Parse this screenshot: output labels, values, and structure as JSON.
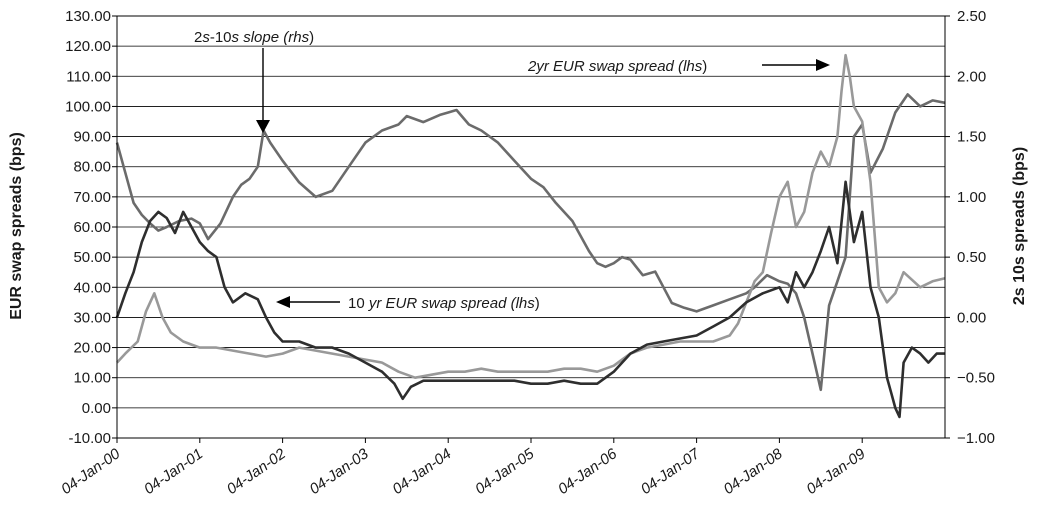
{
  "chart_data": {
    "type": "line",
    "ylabel": "EUR swap spreads (bps)",
    "y2label": "2s 10s spreads (bps)",
    "ylim": [
      -10,
      130
    ],
    "y2lim": [
      -1.0,
      2.5
    ],
    "yticks": [
      "-10.00",
      "0.00",
      "10.00",
      "20.00",
      "30.00",
      "40.00",
      "50.00",
      "60.00",
      "70.00",
      "80.00",
      "90.00",
      "100.00",
      "110.00",
      "120.00",
      "130.00"
    ],
    "y2ticks": [
      "−1.00",
      "−0.50",
      "0.00",
      "0.50",
      "1.00",
      "1.50",
      "2.00",
      "2.50"
    ],
    "xticks": [
      "04-Jan-00",
      "04-Jan-01",
      "04-Jan-02",
      "04-Jan-03",
      "04-Jan-04",
      "04-Jan-05",
      "04-Jan-06",
      "04-Jan-07",
      "04-Jan-08",
      "04-Jan-09"
    ],
    "xlim": [
      2000.0,
      2010.0
    ],
    "grid": "horizontal",
    "annotations": {
      "slope": {
        "pre": "2",
        "it1": "s",
        "mid": "-10",
        "it2": "s slope (",
        "it3": "rhs",
        "post": ")"
      },
      "two_yr": {
        "it1": "2yr EUR swap spread (",
        "it2": "lhs",
        "post": ")"
      },
      "ten_yr": {
        "pre": "10 ",
        "it1": "yr EUR swap spread (",
        "it2": "lhs",
        "post": ")"
      }
    },
    "series": [
      {
        "axis": "right",
        "color": "#6b6b6b",
        "x": [
          2000.0,
          2000.1,
          2000.2,
          2000.3,
          2000.4,
          2000.5,
          2000.6,
          2000.75,
          2000.9,
          2001.0,
          2001.1,
          2001.25,
          2001.4,
          2001.5,
          2001.6,
          2001.7,
          2001.77,
          2001.85,
          2002.0,
          2002.2,
          2002.4,
          2002.6,
          2002.8,
          2003.0,
          2003.2,
          2003.4,
          2003.5,
          2003.7,
          2003.9,
          2004.0,
          2004.1,
          2004.25,
          2004.4,
          2004.6,
          2004.8,
          2005.0,
          2005.15,
          2005.3,
          2005.5,
          2005.7,
          2005.8,
          2005.9,
          2006.0,
          2006.1,
          2006.2,
          2006.35,
          2006.5,
          2006.6,
          2006.7,
          2006.85,
          2007.0,
          2007.2,
          2007.4,
          2007.6,
          2007.7,
          2007.85,
          2008.0,
          2008.1,
          2008.2,
          2008.3,
          2008.4,
          2008.5,
          2008.6,
          2008.7,
          2008.8,
          2008.9,
          2009.0,
          2009.1,
          2009.25,
          2009.4,
          2009.55,
          2009.7,
          2009.85,
          2010.0
        ],
        "y": [
          1.45,
          1.2,
          0.95,
          0.85,
          0.78,
          0.72,
          0.75,
          0.8,
          0.82,
          0.78,
          0.65,
          0.78,
          1.0,
          1.1,
          1.15,
          1.25,
          1.55,
          1.45,
          1.3,
          1.12,
          1.0,
          1.05,
          1.25,
          1.45,
          1.55,
          1.6,
          1.67,
          1.62,
          1.68,
          1.7,
          1.72,
          1.6,
          1.55,
          1.45,
          1.3,
          1.15,
          1.08,
          0.95,
          0.8,
          0.55,
          0.45,
          0.42,
          0.45,
          0.5,
          0.48,
          0.35,
          0.38,
          0.25,
          0.12,
          0.08,
          0.05,
          0.1,
          0.15,
          0.2,
          0.25,
          0.35,
          0.3,
          0.28,
          0.2,
          0.0,
          -0.3,
          -0.6,
          0.1,
          0.3,
          0.5,
          1.5,
          1.6,
          1.2,
          1.4,
          1.7,
          1.85,
          1.75,
          1.8,
          1.78
        ]
      },
      {
        "axis": "left",
        "color": "#999999",
        "x": [
          2000.0,
          2000.1,
          2000.25,
          2000.35,
          2000.45,
          2000.55,
          2000.65,
          2000.8,
          2001.0,
          2001.2,
          2001.4,
          2001.6,
          2001.8,
          2002.0,
          2002.2,
          2002.4,
          2002.6,
          2002.8,
          2003.0,
          2003.2,
          2003.4,
          2003.6,
          2003.8,
          2004.0,
          2004.2,
          2004.4,
          2004.6,
          2004.8,
          2005.0,
          2005.2,
          2005.4,
          2005.6,
          2005.8,
          2006.0,
          2006.1,
          2006.2,
          2006.4,
          2006.6,
          2006.8,
          2007.0,
          2007.2,
          2007.4,
          2007.5,
          2007.6,
          2007.7,
          2007.8,
          2007.9,
          2008.0,
          2008.1,
          2008.2,
          2008.3,
          2008.4,
          2008.5,
          2008.6,
          2008.7,
          2008.75,
          2008.8,
          2008.85,
          2008.9,
          2009.0,
          2009.1,
          2009.2,
          2009.3,
          2009.4,
          2009.5,
          2009.7,
          2009.85,
          2010.0
        ],
        "y": [
          15.0,
          18.0,
          22.0,
          32.0,
          38.0,
          30.0,
          25.0,
          22.0,
          20.0,
          20.0,
          19.0,
          18.0,
          17.0,
          18.0,
          20.0,
          19.0,
          18.0,
          17.0,
          16.0,
          15.0,
          12.0,
          10.0,
          11.0,
          12.0,
          12.0,
          13.0,
          12.0,
          12.0,
          12.0,
          12.0,
          13.0,
          13.0,
          12.0,
          14.0,
          16.0,
          18.0,
          20.0,
          21.0,
          22.0,
          22.0,
          22.0,
          24.0,
          28.0,
          35.0,
          42.0,
          45.0,
          58.0,
          70.0,
          75.0,
          60.0,
          65.0,
          78.0,
          85.0,
          80.0,
          90.0,
          105.0,
          117.0,
          110.0,
          100.0,
          95.0,
          75.0,
          40.0,
          35.0,
          38.0,
          45.0,
          40.0,
          42.0,
          43.0
        ]
      },
      {
        "axis": "left",
        "color": "#2e2e2e",
        "x": [
          2000.0,
          2000.1,
          2000.2,
          2000.3,
          2000.4,
          2000.5,
          2000.6,
          2000.7,
          2000.8,
          2000.9,
          2001.0,
          2001.1,
          2001.2,
          2001.3,
          2001.4,
          2001.55,
          2001.7,
          2001.8,
          2001.9,
          2002.0,
          2002.2,
          2002.4,
          2002.6,
          2002.8,
          2003.0,
          2003.2,
          2003.35,
          2003.45,
          2003.55,
          2003.7,
          2003.9,
          2004.0,
          2004.2,
          2004.4,
          2004.6,
          2004.8,
          2005.0,
          2005.2,
          2005.4,
          2005.6,
          2005.8,
          2006.0,
          2006.1,
          2006.2,
          2006.4,
          2006.6,
          2006.8,
          2007.0,
          2007.2,
          2007.4,
          2007.6,
          2007.8,
          2008.0,
          2008.1,
          2008.2,
          2008.3,
          2008.4,
          2008.5,
          2008.6,
          2008.7,
          2008.8,
          2008.9,
          2009.0,
          2009.1,
          2009.2,
          2009.3,
          2009.35,
          2009.4,
          2009.45,
          2009.5,
          2009.6,
          2009.7,
          2009.8,
          2009.9,
          2010.0
        ],
        "y": [
          30.0,
          38.0,
          45.0,
          55.0,
          62.0,
          65.0,
          63.0,
          58.0,
          65.0,
          60.0,
          55.0,
          52.0,
          50.0,
          40.0,
          35.0,
          38.0,
          36.0,
          30.0,
          25.0,
          22.0,
          22.0,
          20.0,
          20.0,
          18.0,
          15.0,
          12.0,
          8.0,
          3.0,
          7.0,
          9.0,
          9.0,
          9.0,
          9.0,
          9.0,
          9.0,
          9.0,
          8.0,
          8.0,
          9.0,
          8.0,
          8.0,
          12.0,
          15.0,
          18.0,
          21.0,
          22.0,
          23.0,
          24.0,
          27.0,
          30.0,
          35.0,
          38.0,
          40.0,
          35.0,
          45.0,
          40.0,
          45.0,
          52.0,
          60.0,
          48.0,
          75.0,
          55.0,
          65.0,
          40.0,
          30.0,
          10.0,
          5.0,
          0.0,
          -3.0,
          15.0,
          20.0,
          18.0,
          15.0,
          18.0,
          18.0
        ]
      }
    ]
  }
}
